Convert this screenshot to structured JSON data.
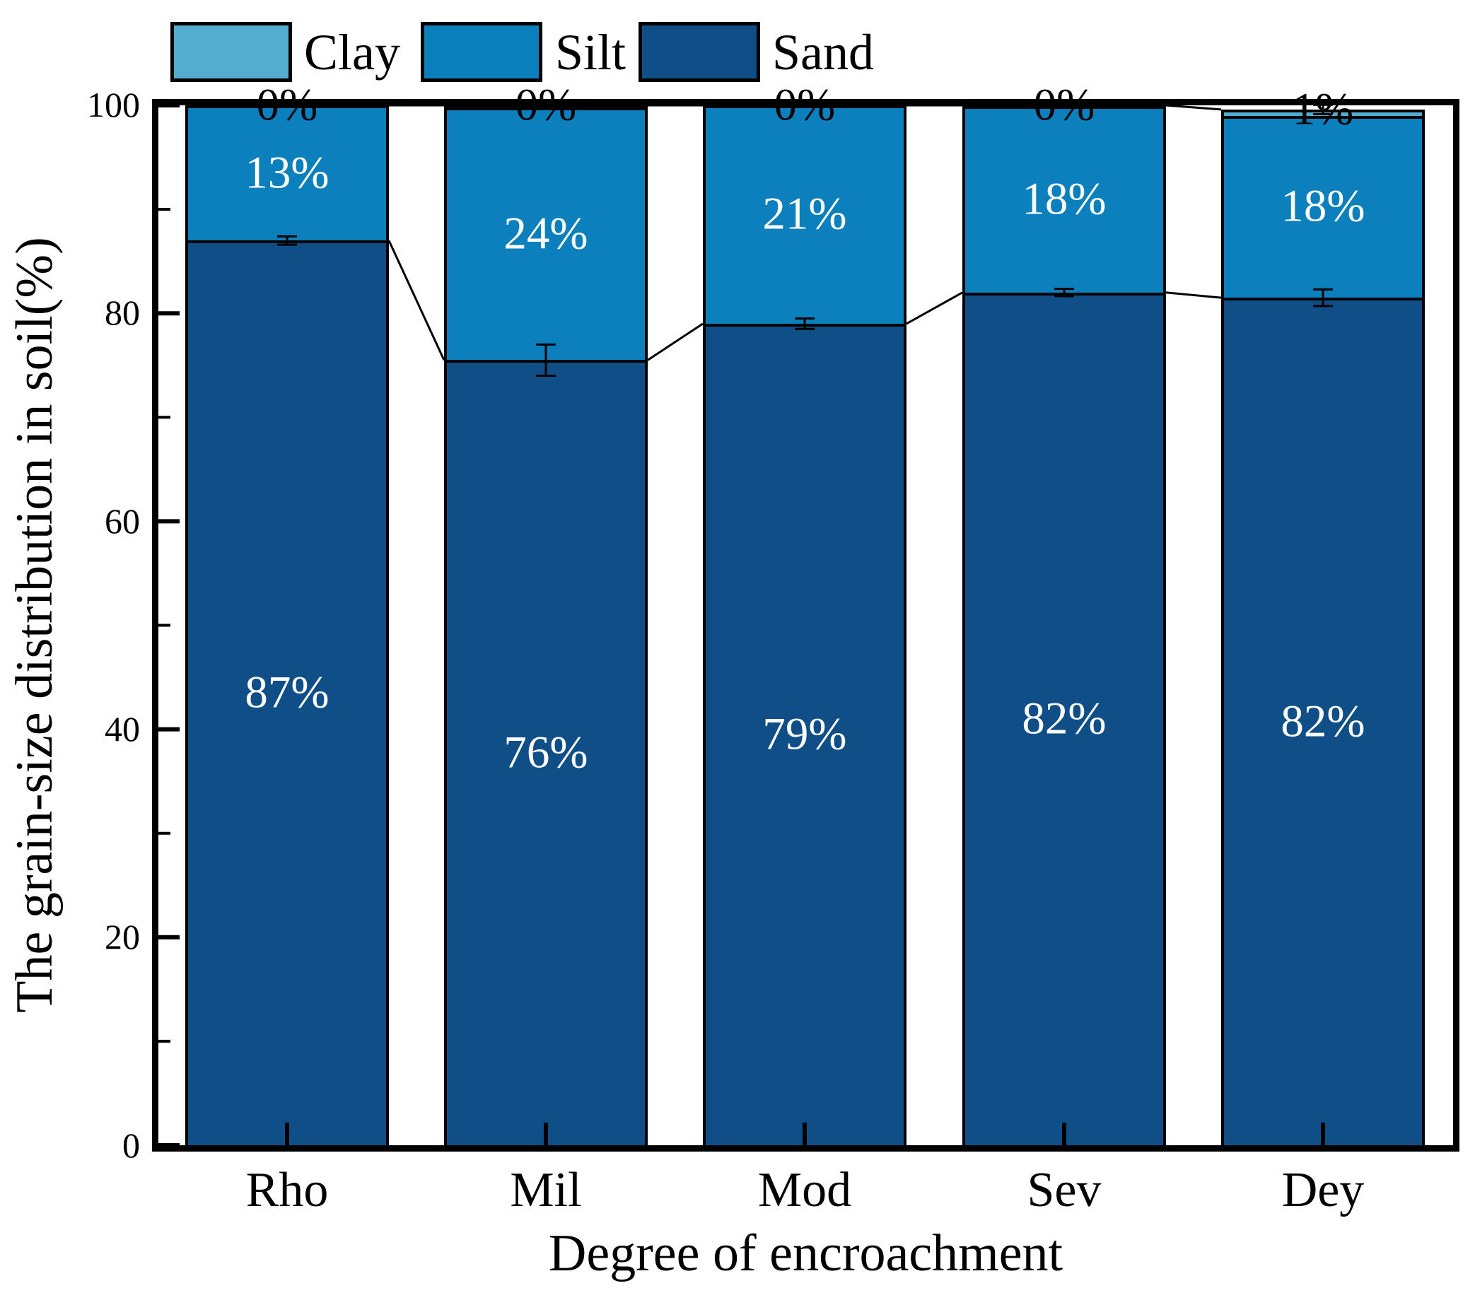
{
  "figure": {
    "background": "#FFFFFF",
    "legend": {
      "items": [
        {
          "label": "Clay",
          "color": "#53AECE"
        },
        {
          "label": "Silt",
          "color": "#0C7FBD"
        },
        {
          "label": "Sand",
          "color": "#0F4E87"
        }
      ]
    },
    "y_axis": {
      "title": "The grain-size distribution in soil(%)",
      "tick_labels": [
        "100",
        "80",
        "60",
        "40",
        "20",
        "0"
      ],
      "tick_values": [
        100,
        80,
        60,
        40,
        20,
        0
      ],
      "minor_tick_values": [
        90,
        70,
        50,
        30,
        10
      ],
      "range": [
        0,
        100
      ]
    },
    "x_axis": {
      "title": "Degree of encroachment",
      "categories": [
        "Rho",
        "Mil",
        "Mod",
        "Sev",
        "Dey"
      ]
    }
  },
  "chart_data": {
    "type": "bar",
    "stacked": true,
    "title": "",
    "xlabel": "Degree of encroachment",
    "ylabel": "The grain-size distribution in soil(%)",
    "ylim": [
      0,
      100
    ],
    "grid": false,
    "legend_position": "top-left",
    "axis_color": "#000000",
    "categories": [
      "Rho",
      "Mil",
      "Mod",
      "Sev",
      "Dey"
    ],
    "series": [
      {
        "name": "Sand",
        "color": "#0F4E87",
        "values": [
          87,
          76,
          79,
          82,
          82
        ],
        "labels": [
          "87%",
          "76%",
          "79%",
          "82%",
          "82%"
        ],
        "label_color": "#FFFFFF"
      },
      {
        "name": "Silt",
        "color": "#0C7FBD",
        "values": [
          13,
          24,
          21,
          18,
          18
        ],
        "labels": [
          "13%",
          "24%",
          "21%",
          "18%",
          "18%"
        ],
        "label_color": "#FFFFFF"
      },
      {
        "name": "Clay",
        "color": "#53AECE",
        "values": [
          0,
          0,
          0,
          0,
          1
        ],
        "labels": [
          "0%",
          "0%",
          "0%",
          "0%",
          "1%"
        ],
        "label_color": "#000000"
      }
    ],
    "render": {
      "sand_top": [
        87,
        75.5,
        79,
        82,
        81.5
      ],
      "silt_top": [
        100,
        99.8,
        100,
        99.9,
        99.0
      ],
      "total": [
        100,
        100,
        100,
        100,
        99.6
      ],
      "sand_error": [
        0.4,
        1.5,
        0.5,
        0.35,
        0.8
      ],
      "total_error": [
        0,
        0.3,
        0,
        0.25,
        0.45
      ]
    }
  }
}
